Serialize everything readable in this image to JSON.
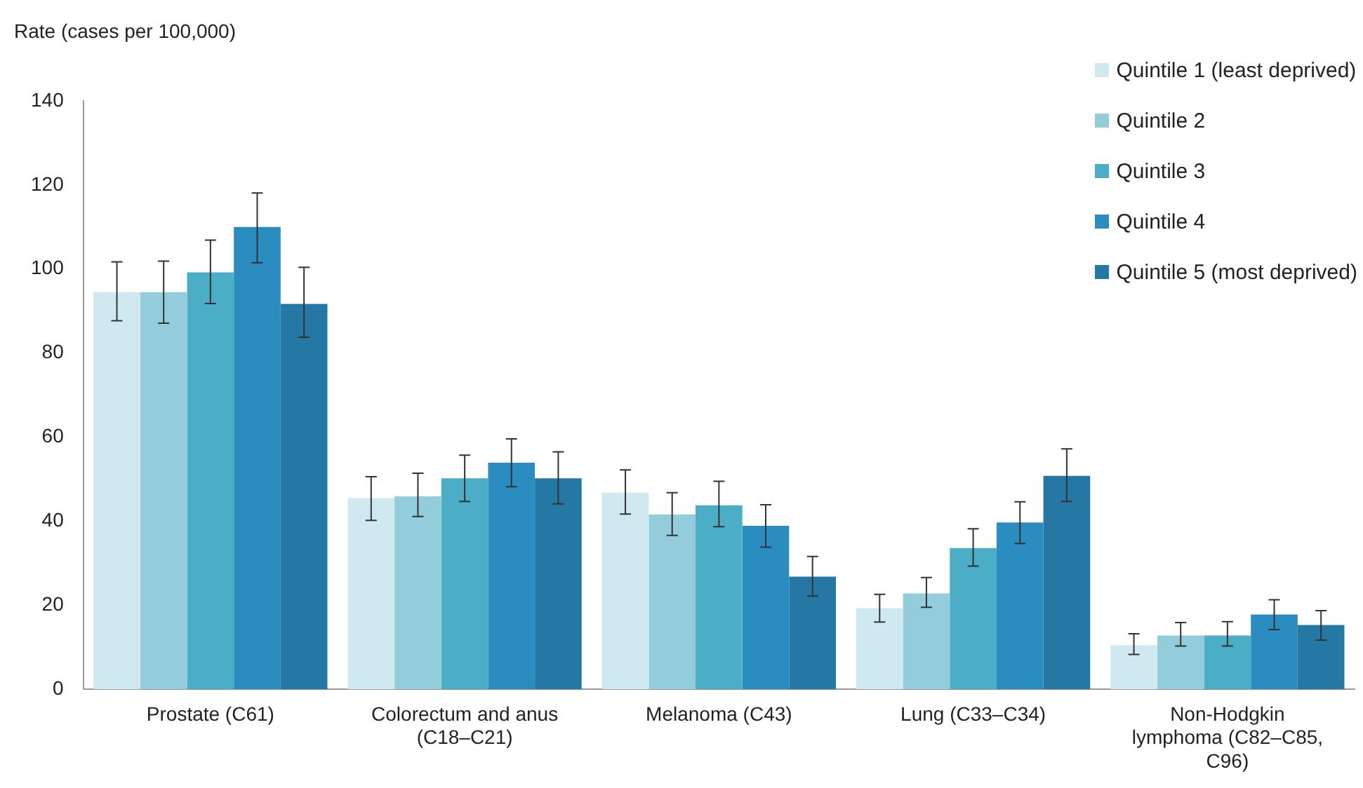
{
  "chart_data": {
    "type": "bar",
    "ylabel": "Rate (cases per 100,000)",
    "categories": [
      "Prostate (C61)",
      "Colorectum and anus (C18–C21)",
      "Melanoma (C43)",
      "Lung (C33–C34)",
      "Non-Hodgkin lymphoma (C82–C85, C96)"
    ],
    "series": [
      {
        "name": "Quintile 1 (least deprived)",
        "color": "#d0e8ef",
        "values": [
          94.5,
          45.5,
          46.8,
          19.3,
          10.5
        ],
        "errors": [
          [
            87.7,
            101.7
          ],
          [
            40.2,
            50.6
          ],
          [
            41.7,
            52.2
          ],
          [
            16,
            22.6
          ],
          [
            8.3,
            13.2
          ]
        ]
      },
      {
        "name": "Quintile 2",
        "color": "#93ccdb",
        "values": [
          94.5,
          45.9,
          41.6,
          22.8,
          12.8
        ],
        "errors": [
          [
            87.1,
            101.9
          ],
          [
            41.1,
            51.4
          ],
          [
            36.6,
            46.8
          ],
          [
            19.5,
            26.6
          ],
          [
            10.3,
            15.9
          ]
        ]
      },
      {
        "name": "Quintile 3",
        "color": "#4badc6",
        "values": [
          99.2,
          50.2,
          43.8,
          33.6,
          12.8
        ],
        "errors": [
          [
            91.8,
            106.9
          ],
          [
            44.7,
            55.7
          ],
          [
            38.7,
            49.5
          ],
          [
            29.3,
            38.2
          ],
          [
            10.3,
            16.1
          ]
        ]
      },
      {
        "name": "Quintile 4",
        "color": "#2b8dbf",
        "values": [
          110,
          53.9,
          38.9,
          39.7,
          17.8
        ],
        "errors": [
          [
            101.5,
            118.1
          ],
          [
            48.2,
            59.6
          ],
          [
            33.8,
            43.9
          ],
          [
            34.7,
            44.6
          ],
          [
            14.2,
            21.3
          ]
        ]
      },
      {
        "name": "Quintile 5 (most deprived)",
        "color": "#2578a4",
        "values": [
          91.7,
          50.2,
          26.8,
          50.8,
          15.3
        ],
        "errors": [
          [
            83.8,
            100.4
          ],
          [
            44.1,
            56.5
          ],
          [
            22.2,
            31.6
          ],
          [
            44.7,
            57.2
          ],
          [
            11.7,
            18.7
          ]
        ]
      }
    ],
    "ylim": [
      0,
      140
    ],
    "yticks": [
      0,
      20,
      40,
      60,
      80,
      100,
      120,
      140
    ],
    "grid": false,
    "legend": "top right"
  }
}
